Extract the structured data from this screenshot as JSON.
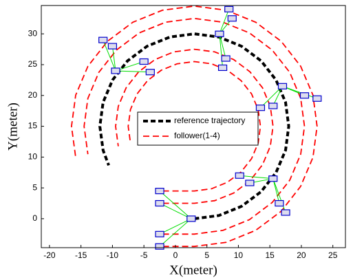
{
  "chart_data": {
    "type": "line",
    "xlabel": "X(meter)",
    "ylabel": "Y(meter)",
    "xlim": [
      -21.3,
      27
    ],
    "ylim": [
      -4.7,
      34.6
    ],
    "xticks": [
      -20,
      -15,
      -10,
      -5,
      0,
      5,
      10,
      15,
      20,
      25
    ],
    "yticks": [
      0,
      5,
      10,
      15,
      20,
      25,
      30
    ],
    "legend": "center",
    "series": [
      {
        "name": "reference trajectory",
        "color": "#000000",
        "x": [
          3,
          6.88,
          10.5,
          13.61,
          15.99,
          17.49,
          18,
          17.49,
          15.99,
          13.61,
          10.5,
          6.88,
          3,
          -0.88,
          -4.5,
          -7.61,
          -9.99,
          -11.49,
          -12,
          -11.49,
          -10.59
        ],
        "y": [
          0,
          0.51,
          2.01,
          4.39,
          7.5,
          11.12,
          15,
          18.88,
          22.5,
          25.61,
          27.99,
          29.49,
          30,
          29.49,
          27.99,
          25.61,
          22.5,
          18.88,
          15,
          11.12,
          8.66
        ]
      },
      {
        "name": "follower(1-4)",
        "color": "#ff0000",
        "paths": [
          {
            "x": [
              -2,
              3,
              5.72,
              8.25,
              10.42,
              12.09,
              13.14,
              13.5,
              13.14,
              12.09,
              10.42,
              8.25,
              5.72,
              3,
              0.28,
              -2.25,
              -4.42,
              -6.09,
              -7.14,
              -7.5,
              -7.14
            ],
            "y": [
              4.5,
              4.5,
              4.86,
              5.91,
              7.58,
              9.75,
              12.28,
              15,
              17.72,
              20.25,
              22.42,
              24.09,
              25.14,
              25.5,
              25.14,
              24.09,
              22.42,
              20.25,
              17.72,
              15,
              12.28
            ]
          },
          {
            "x": [
              -2,
              3,
              6.24,
              9.25,
              11.84,
              13.83,
              15.07,
              15.5,
              15.07,
              13.83,
              11.84,
              9.25,
              6.24,
              3,
              -0.24,
              -3.25,
              -5.84,
              -7.83,
              -9.07,
              -9.5,
              -9.07
            ],
            "y": [
              2.5,
              2.5,
              2.93,
              4.17,
              6.16,
              8.75,
              11.76,
              15,
              18.24,
              21.25,
              23.84,
              25.83,
              27.07,
              27.5,
              27.07,
              25.83,
              23.84,
              21.25,
              18.24,
              15,
              11.76
            ]
          },
          {
            "x": [
              -2,
              3,
              7.53,
              11.75,
              15.37,
              18.16,
              19.9,
              20.5,
              19.9,
              18.16,
              15.37,
              11.75,
              7.53,
              3,
              -1.53,
              -5.75,
              -9.37,
              -12.16,
              -13.9,
              -14.5,
              -13.9
            ],
            "y": [
              -2.5,
              -2.5,
              -1.9,
              -0.16,
              2.63,
              6.25,
              10.47,
              15,
              19.53,
              23.75,
              27.37,
              30.16,
              31.9,
              32.5,
              31.9,
              30.16,
              27.37,
              23.75,
              19.53,
              15,
              10.47
            ]
          },
          {
            "x": [
              -2,
              3,
              8.05,
              12.75,
              16.79,
              19.89,
              21.84,
              22.5,
              21.84,
              19.89,
              16.79,
              12.75,
              8.05,
              3,
              -2.05,
              -6.75,
              -10.79,
              -13.89,
              -15.84,
              -16.5,
              -15.84
            ],
            "y": [
              -4.5,
              -4.5,
              -3.84,
              -1.89,
              1.21,
              5.25,
              9.95,
              15,
              20.05,
              24.75,
              28.79,
              31.89,
              33.84,
              34.5,
              33.84,
              31.89,
              28.79,
              24.75,
              20.05,
              15,
              9.95
            ]
          }
        ]
      }
    ],
    "formations": [
      {
        "x": [
          2.5,
          -2.5,
          -2.5,
          -2.5,
          -2.5
        ],
        "y": [
          0,
          4.5,
          2.5,
          -2.5,
          -4.5
        ]
      },
      {
        "x": [
          15.5,
          10.2,
          11.8,
          16.5,
          17.5
        ],
        "y": [
          6.5,
          7,
          5.8,
          2.5,
          1
        ]
      },
      {
        "x": [
          17,
          13.5,
          15.5,
          20.5,
          22.5
        ],
        "y": [
          21.5,
          18,
          18.3,
          20,
          19.5
        ]
      },
      {
        "x": [
          7,
          8.5,
          9,
          8,
          7.5
        ],
        "y": [
          30,
          34,
          32.5,
          26,
          24.5
        ]
      },
      {
        "x": [
          -9.5,
          -11.5,
          -10,
          -5,
          -4
        ],
        "y": [
          24,
          29,
          28,
          25.5,
          23.8
        ]
      }
    ],
    "formation_color": "#00dd00",
    "robot_color": "#0000cc"
  }
}
